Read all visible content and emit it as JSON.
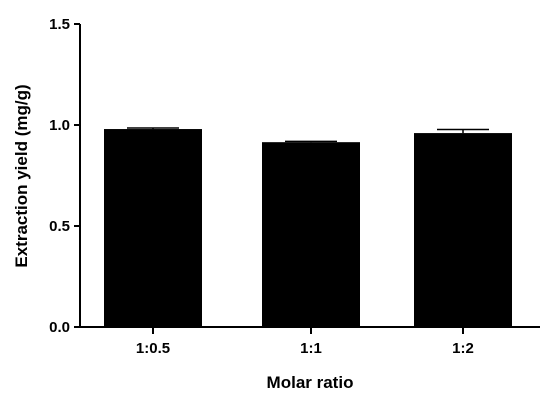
{
  "chart_data": {
    "type": "bar",
    "categories": [
      "1:0.5",
      "1:1",
      "1:2"
    ],
    "values": [
      0.98,
      0.915,
      0.96
    ],
    "errors": [
      0.005,
      0.004,
      0.018
    ],
    "xlabel": "Molar ratio",
    "ylabel": "Extraction yield (mg/g)",
    "ylim": [
      0,
      1.5
    ],
    "yticks": [
      "0.0",
      "0.5",
      "1.0",
      "1.5"
    ],
    "grid": false,
    "bar_color": "#000000"
  }
}
